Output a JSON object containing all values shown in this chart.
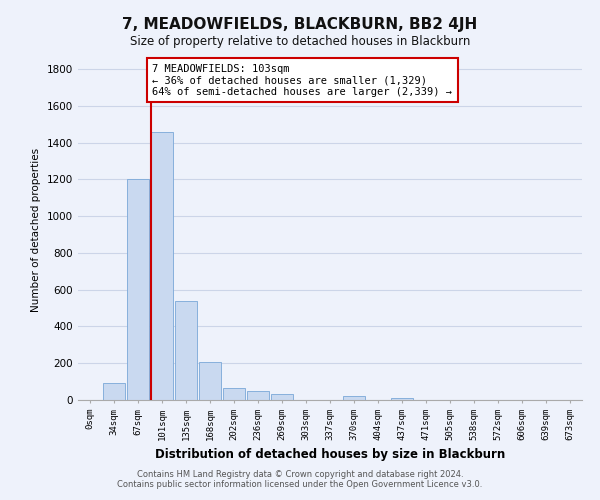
{
  "title": "7, MEADOWFIELDS, BLACKBURN, BB2 4JH",
  "subtitle": "Size of property relative to detached houses in Blackburn",
  "xlabel": "Distribution of detached houses by size in Blackburn",
  "ylabel": "Number of detached properties",
  "bar_labels": [
    "0sqm",
    "34sqm",
    "67sqm",
    "101sqm",
    "135sqm",
    "168sqm",
    "202sqm",
    "236sqm",
    "269sqm",
    "303sqm",
    "337sqm",
    "370sqm",
    "404sqm",
    "437sqm",
    "471sqm",
    "505sqm",
    "538sqm",
    "572sqm",
    "606sqm",
    "639sqm",
    "673sqm"
  ],
  "bar_values": [
    0,
    90,
    1200,
    1460,
    540,
    205,
    65,
    48,
    30,
    0,
    0,
    20,
    0,
    12,
    0,
    0,
    0,
    0,
    0,
    0,
    0
  ],
  "bar_color": "#c9d9f0",
  "bar_edge_color": "#7aa8d8",
  "grid_color": "#ccd5e8",
  "background_color": "#eef2fb",
  "vline_x_index": 3,
  "vline_color": "#cc0000",
  "annotation_lines": [
    "7 MEADOWFIELDS: 103sqm",
    "← 36% of detached houses are smaller (1,329)",
    "64% of semi-detached houses are larger (2,339) →"
  ],
  "annotation_box_color": "#ffffff",
  "annotation_box_edge": "#cc0000",
  "ylim": [
    0,
    1850
  ],
  "yticks": [
    0,
    200,
    400,
    600,
    800,
    1000,
    1200,
    1400,
    1600,
    1800
  ],
  "footer_line1": "Contains HM Land Registry data © Crown copyright and database right 2024.",
  "footer_line2": "Contains public sector information licensed under the Open Government Licence v3.0."
}
